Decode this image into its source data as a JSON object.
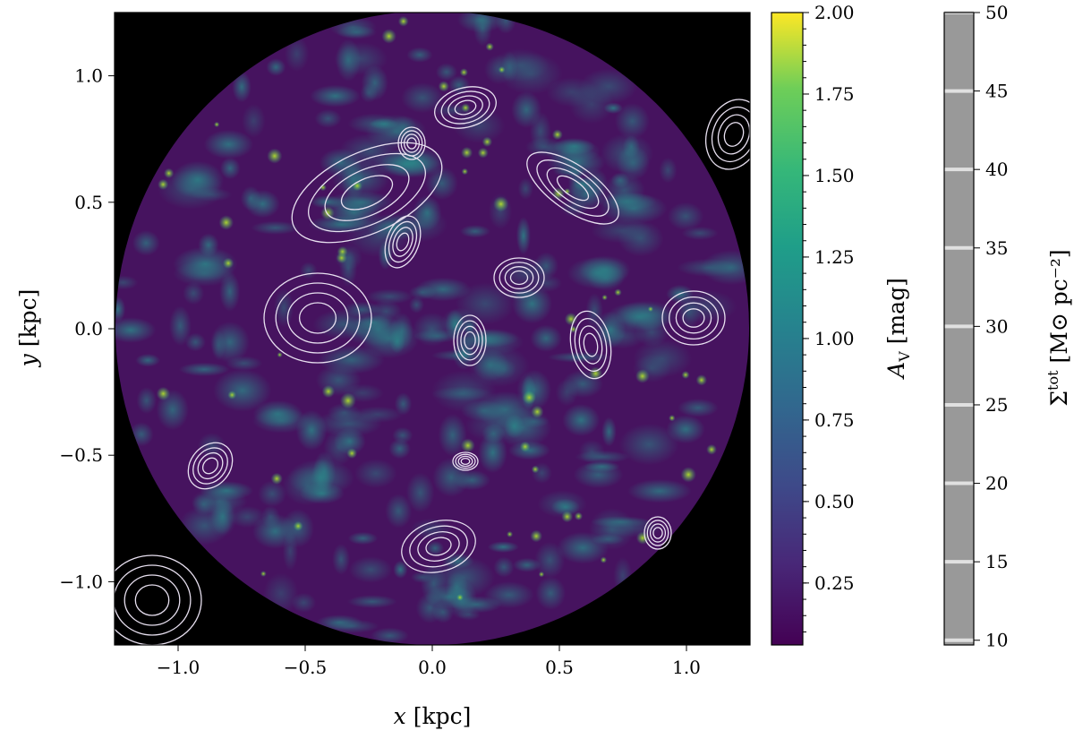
{
  "chart_data": {
    "type": "heatmap",
    "xlabel_var": "x",
    "xlabel_unit": " [kpc]",
    "ylabel_var": "y",
    "ylabel_unit": " [kpc]",
    "xlim": [
      -1.25,
      1.25
    ],
    "ylim": [
      -1.25,
      1.25
    ],
    "xticks": [
      -1.0,
      -0.5,
      0.0,
      0.5,
      1.0
    ],
    "xtick_labels": [
      "−1.0",
      "−0.5",
      "0.0",
      "0.5",
      "1.0"
    ],
    "yticks": [
      -1.0,
      -0.5,
      0.0,
      0.5,
      1.0
    ],
    "ytick_labels": [
      "−1.0",
      "−0.5",
      "0.0",
      "0.5",
      "1.0"
    ],
    "background_color": "#000000",
    "contour_color": "#e8e0f0",
    "map_colormap": "viridis",
    "colorbar_av": {
      "label_main": "A",
      "label_sub": "V",
      "label_unit": " [mag]",
      "range": [
        0.06,
        2.0
      ],
      "ticks": [
        0.25,
        0.5,
        0.75,
        1.0,
        1.25,
        1.5,
        1.75,
        2.0
      ],
      "tick_labels": [
        "0.25",
        "0.50",
        "0.75",
        "1.00",
        "1.25",
        "1.50",
        "1.75",
        "2.00"
      ]
    },
    "colorbar_sigma": {
      "label_main": "Σ",
      "label_sup": "tot",
      "label_unit": " [M⊙ pc⁻²]",
      "range": [
        9.7,
        50
      ],
      "ticks": [
        10,
        15,
        20,
        25,
        30,
        35,
        40,
        45,
        50
      ],
      "tick_labels": [
        "10",
        "15",
        "20",
        "25",
        "30",
        "35",
        "40",
        "45",
        "50"
      ],
      "fill_color": "#999999",
      "line_color": "#e0e0e0"
    }
  }
}
